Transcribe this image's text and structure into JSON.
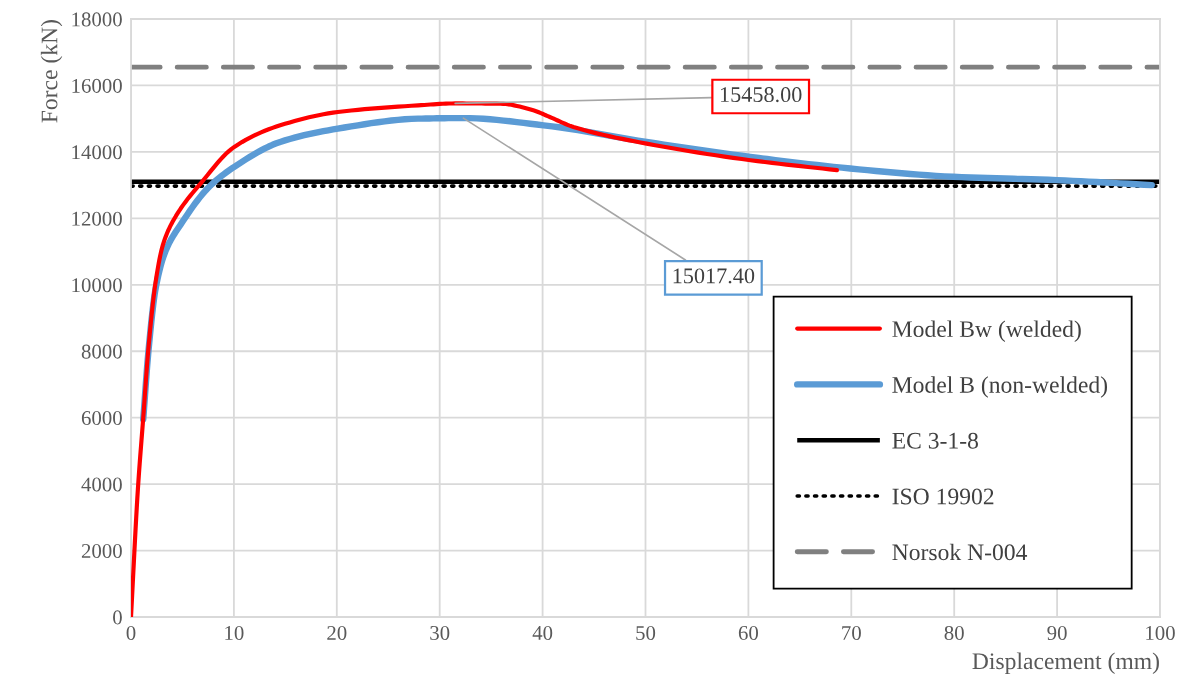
{
  "chart_data": {
    "type": "line",
    "xlabel": "Displacement (mm)",
    "ylabel": "Force (kN)",
    "xlim": [
      0,
      100
    ],
    "xticks": [
      0,
      10,
      20,
      30,
      40,
      50,
      60,
      70,
      80,
      90,
      100
    ],
    "ylim": [
      0,
      18000
    ],
    "yticks": [
      0,
      2000,
      4000,
      6000,
      8000,
      10000,
      12000,
      14000,
      16000,
      18000
    ],
    "grid": true,
    "legend": "bottom right",
    "marker": "none",
    "series": [
      {
        "name": "Model Bw (welded)",
        "color": "#ff0000",
        "line_style": "solid",
        "x": [
          0,
          0.67,
          1.19,
          1.71,
          2.4,
          3.1,
          4.14,
          6.9,
          10.04,
          14.5,
          20.1,
          27.9,
          31.5,
          35.9,
          39.1,
          40.7,
          43.0,
          50.1,
          60.2,
          68.6
        ],
        "values": [
          0,
          3850,
          6000,
          8150,
          10100,
          11200,
          11950,
          13100,
          14150,
          14800,
          15200,
          15400,
          15458,
          15450,
          15250,
          15050,
          14750,
          14250,
          13750,
          13450
        ]
      },
      {
        "name": "Model B (non-welded)",
        "color": "#5b9bd5",
        "line_style": "solid",
        "x": [
          1.19,
          1.71,
          2.4,
          3.4,
          4.8,
          7.6,
          10.04,
          14.5,
          20.1,
          27.9,
          32.3,
          40.1,
          50.1,
          60.2,
          69.9,
          79.9,
          90,
          99.2
        ],
        "values": [
          5950,
          8050,
          9900,
          11050,
          11800,
          12950,
          13550,
          14300,
          14700,
          15000,
          15017.4,
          14800,
          14300,
          13850,
          13500,
          13250,
          13150,
          13000
        ]
      }
    ],
    "ref_lines": [
      {
        "axis": "y",
        "value": 13100,
        "label": "EC 3-1-8",
        "color": "#000000",
        "line_style": "solid"
      },
      {
        "axis": "y",
        "value": 12970,
        "label": "ISO 19902",
        "color": "#000000",
        "line_style": "dotted"
      },
      {
        "axis": "y",
        "value": 16550,
        "label": "Norsok N-004",
        "color": "#808080",
        "line_style": "dashed"
      }
    ],
    "annotations": [
      {
        "text": "15458.00",
        "x": 31.5,
        "y": 15458
      },
      {
        "text": "15017.40",
        "x": 32.3,
        "y": 15017.4
      }
    ]
  }
}
